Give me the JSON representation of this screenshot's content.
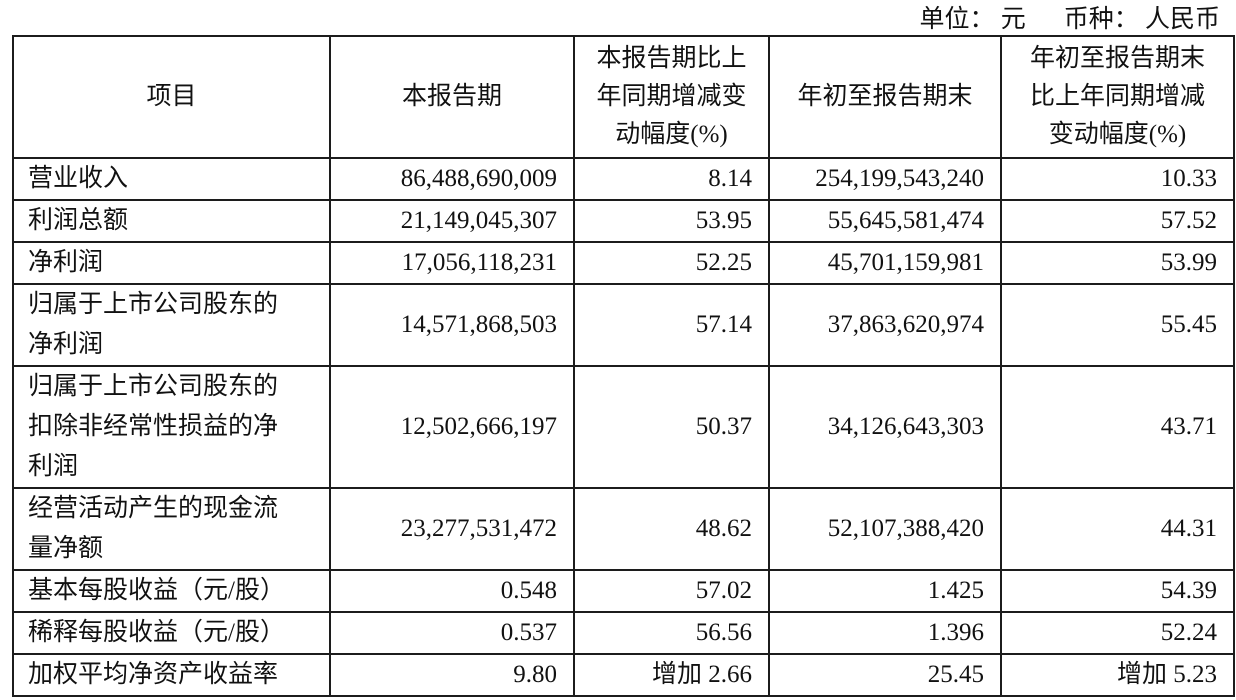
{
  "note": {
    "unit": "单位： 元",
    "currency": "币种： 人民币"
  },
  "table": {
    "columns": [
      "项目",
      "本报告期",
      "本报告期比上年同期增减变动幅度(%)",
      "年初至报告期末",
      "年初至报告期末比上年同期增减变动幅度(%)"
    ],
    "rows": [
      [
        "营业收入",
        "86,488,690,009",
        "8.14",
        "254,199,543,240",
        "10.33"
      ],
      [
        "利润总额",
        "21,149,045,307",
        "53.95",
        "55,645,581,474",
        "57.52"
      ],
      [
        "净利润",
        "17,056,118,231",
        "52.25",
        "45,701,159,981",
        "53.99"
      ],
      [
        "归属于上市公司股东的净利润",
        "14,571,868,503",
        "57.14",
        "37,863,620,974",
        "55.45"
      ],
      [
        "归属于上市公司股东的扣除非经常性损益的净利润",
        "12,502,666,197",
        "50.37",
        "34,126,643,303",
        "43.71"
      ],
      [
        "经营活动产生的现金流量净额",
        "23,277,531,472",
        "48.62",
        "52,107,388,420",
        "44.31"
      ],
      [
        "基本每股收益（元/股）",
        "0.548",
        "57.02",
        "1.425",
        "54.39"
      ],
      [
        "稀释每股收益（元/股）",
        "0.537",
        "56.56",
        "1.396",
        "52.24"
      ],
      [
        "加权平均净资产收益率",
        "9.80",
        "增加 2.66",
        "25.45",
        "增加 5.23"
      ]
    ]
  }
}
